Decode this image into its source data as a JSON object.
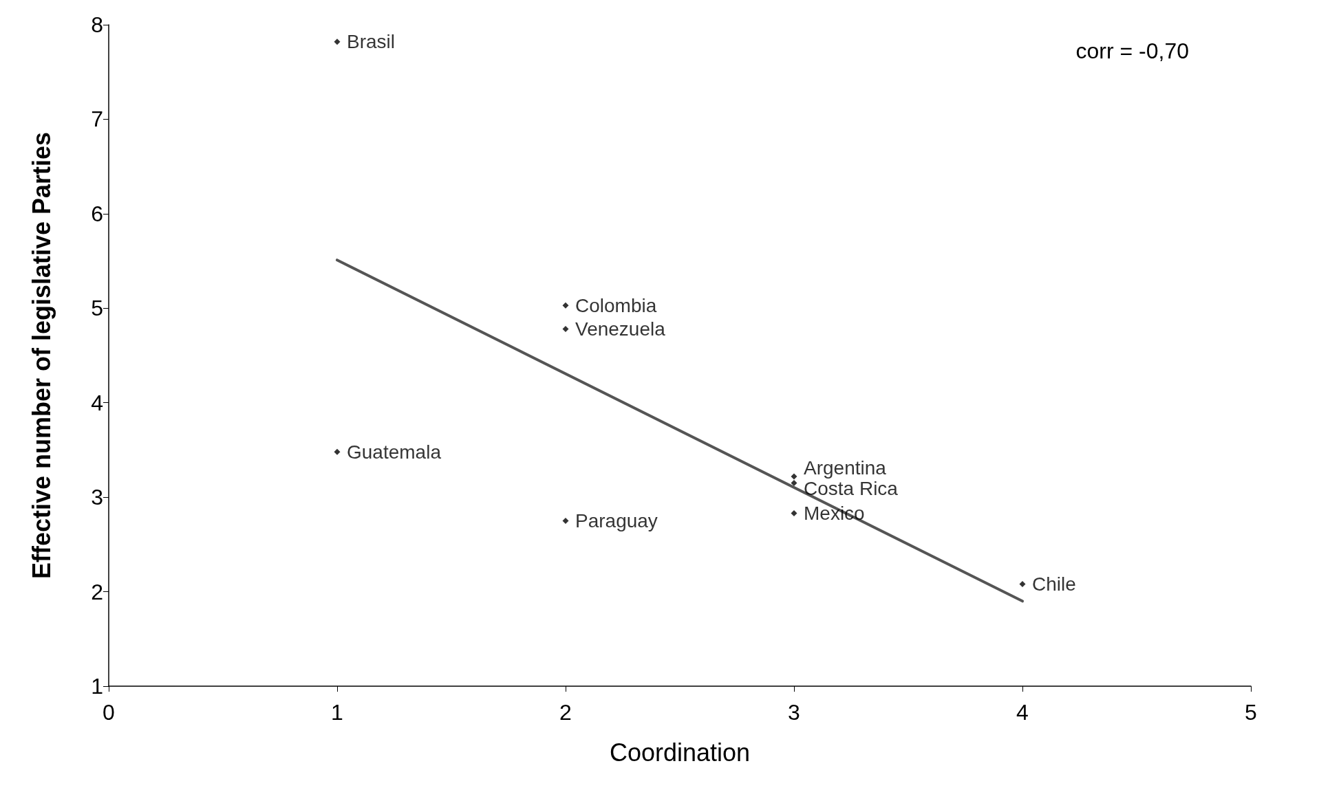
{
  "chart_data": {
    "type": "scatter",
    "xlabel": "Coordination",
    "ylabel": "Effective number of legislative Parties",
    "xlim": [
      0,
      5
    ],
    "xticks": [
      0,
      1,
      2,
      3,
      4,
      5
    ],
    "ylim": [
      1,
      8
    ],
    "yticks": [
      1,
      2,
      3,
      4,
      5,
      6,
      7,
      8
    ],
    "grid": false,
    "marker": "diamond",
    "series": [
      {
        "color": "#000000",
        "x": [
          1,
          2,
          2,
          1,
          2,
          3,
          3,
          3,
          4
        ],
        "values": [
          7.82,
          5.03,
          4.78,
          3.48,
          2.75,
          3.22,
          3.15,
          2.83,
          2.08
        ]
      },
      {
        "type": "line",
        "color": "#555555",
        "x": [
          1,
          4
        ],
        "values": [
          5.51,
          1.9
        ],
        "marker": "none"
      }
    ],
    "annotations": [
      {
        "text": "Brasil",
        "x": 1,
        "y": 7.82
      },
      {
        "text": "Colombia",
        "x": 2,
        "y": 5.03
      },
      {
        "text": "Venezuela",
        "x": 2,
        "y": 4.78
      },
      {
        "text": "Guatemala",
        "x": 1,
        "y": 3.48
      },
      {
        "text": "Paraguay",
        "x": 2,
        "y": 2.75
      },
      {
        "text": "Argentina",
        "x": 3,
        "y": 3.22
      },
      {
        "text": "Costa Rica",
        "x": 3,
        "y": 3.15
      },
      {
        "text": "Mexico",
        "x": 3,
        "y": 2.83
      },
      {
        "text": "Chile",
        "x": 4,
        "y": 2.08
      },
      "corr = -0,70"
    ]
  }
}
